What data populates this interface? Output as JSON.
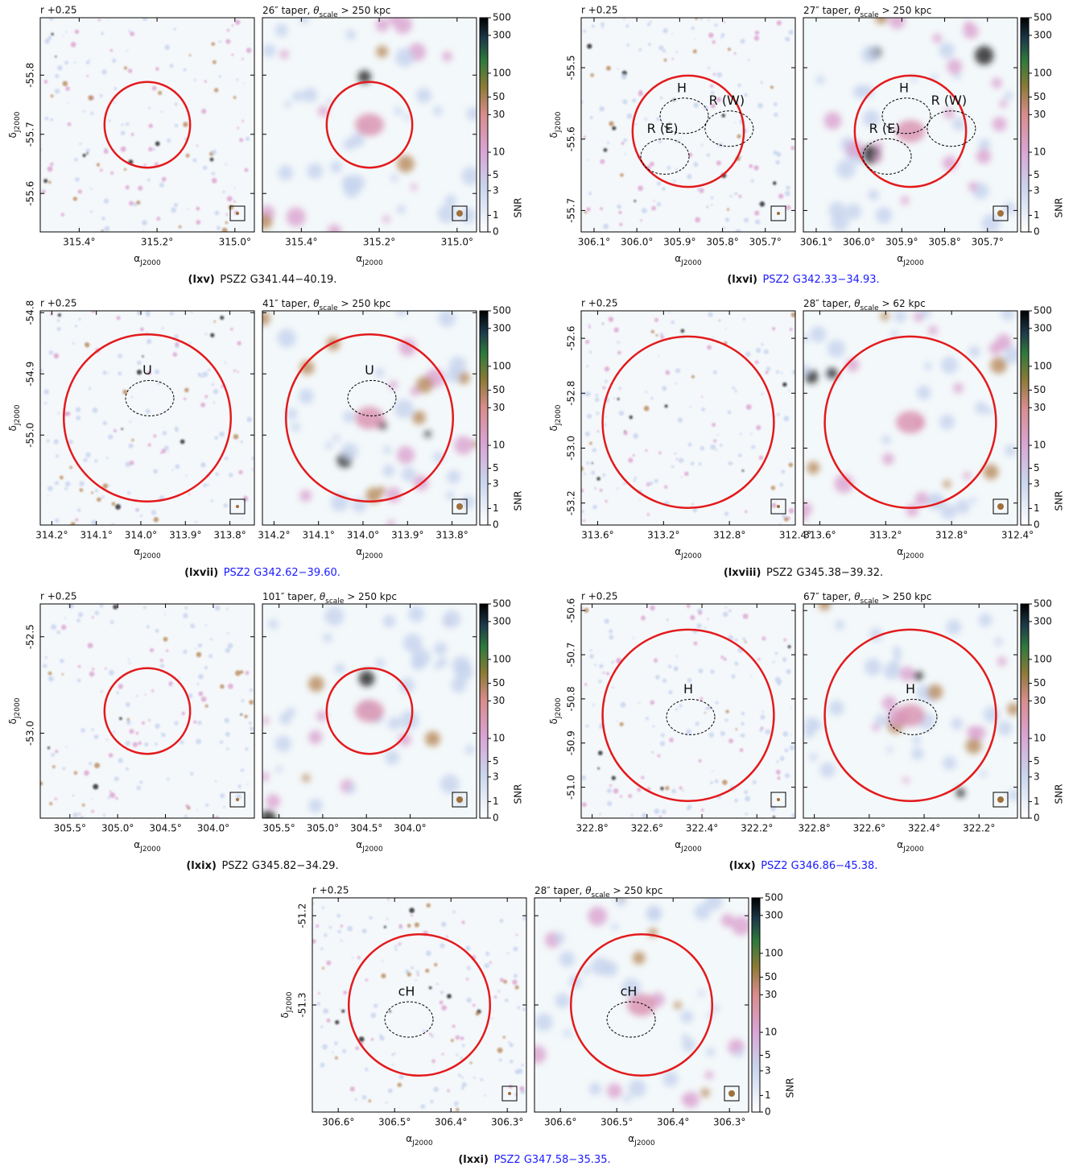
{
  "axis_labels": {
    "x": {
      "sym": "α",
      "sub": "J2000"
    },
    "y": {
      "sym": "δ",
      "sub": "J2000"
    }
  },
  "colorbar": {
    "label": "SNR",
    "lim": [
      0,
      500
    ],
    "ticks": [
      0,
      1,
      3,
      5,
      10,
      30,
      50,
      100,
      300,
      500
    ]
  },
  "panels": [
    {
      "label": "(lxv)",
      "name": "PSZ2 G341.44−40.19.",
      "link": false,
      "left_title": "r +0.25",
      "right_title": {
        "pre": "26″ taper, ",
        "theta": "θ",
        "sub": "scale",
        "post": " > 250 kpc"
      },
      "xlim": [
        315.5,
        314.95
      ],
      "xticks": [
        {
          "value": 315.4,
          "label": "315.4°"
        },
        {
          "value": 315.2,
          "label": "315.2°"
        },
        {
          "value": 315.0,
          "label": "315.0°"
        }
      ],
      "ylim": [
        -55.897,
        -55.535
      ],
      "yticks": [
        -55.6,
        -55.7,
        -55.8
      ],
      "annotations": []
    },
    {
      "label": "(lxvi)",
      "name": "PSZ2 G342.33−34.93.",
      "link": true,
      "left_title": "r +0.25",
      "right_title": {
        "pre": "27″ taper, ",
        "theta": "θ",
        "sub": "scale",
        "post": " > 250 kpc"
      },
      "xlim": [
        306.13,
        305.63
      ],
      "xticks": [
        {
          "value": 306.1,
          "label": "306.1°"
        },
        {
          "value": 306.0,
          "label": "306.0°"
        },
        {
          "value": 305.9,
          "label": "305.9°"
        },
        {
          "value": 305.8,
          "label": "305.8°"
        },
        {
          "value": 305.7,
          "label": "305.7°"
        }
      ],
      "ylim": [
        -55.43,
        -55.73
      ],
      "yticks": [
        -55.5,
        -55.6,
        -55.7
      ],
      "annotations": [
        "H",
        "R (W)",
        "R (E)"
      ]
    },
    {
      "label": "(lxvii)",
      "name": "PSZ2 G342.62−39.60.",
      "link": true,
      "left_title": "r +0.25",
      "right_title": {
        "pre": "41″ taper, ",
        "theta": "θ",
        "sub": "scale",
        "post": " > 250 kpc"
      },
      "xlim": [
        314.226,
        313.745
      ],
      "xticks": [
        {
          "value": 314.2,
          "label": "314.2°"
        },
        {
          "value": 314.1,
          "label": "314.1°"
        },
        {
          "value": 314.0,
          "label": "314.0°"
        },
        {
          "value": 313.9,
          "label": "313.9°"
        },
        {
          "value": 313.8,
          "label": "313.8°"
        }
      ],
      "ylim": [
        -54.797,
        -55.147
      ],
      "yticks": [
        -54.8,
        -54.9,
        {
          "value": -55.0,
          "label": "-55.0"
        }
      ],
      "annotations": [
        "U"
      ]
    },
    {
      "label": "(lxviii)",
      "name": "PSZ2 G345.38−39.32.",
      "link": false,
      "left_title": "r +0.25",
      "right_title": {
        "pre": "28″ taper, ",
        "theta": "θ",
        "sub": "scale",
        "post": " > 62 kpc"
      },
      "xlim": [
        313.7,
        312.4
      ],
      "xticks": [
        {
          "value": 313.6,
          "label": "313.6°"
        },
        {
          "value": 313.2,
          "label": "313.2°"
        },
        {
          "value": 312.8,
          "label": "312.8°"
        },
        {
          "value": 312.4,
          "label": "312.4°"
        }
      ],
      "ylim": [
        -52.5,
        -53.28
      ],
      "yticks": [
        -52.6,
        -52.8,
        {
          "value": -53.0,
          "label": "-53.0"
        },
        -53.2
      ],
      "annotations": []
    },
    {
      "label": "(lxix)",
      "name": "PSZ2 G345.82−34.29.",
      "link": false,
      "left_title": "r +0.25",
      "right_title": {
        "pre": "101″ taper, ",
        "theta": "θ",
        "sub": "scale",
        "post": " > 250 kpc"
      },
      "xlim": [
        305.81,
        303.57
      ],
      "right_xlim": [
        305.69,
        303.24
      ],
      "xticks": [
        {
          "value": 305.5,
          "label": "305.5°"
        },
        {
          "value": 305.0,
          "label": "305.0°"
        },
        {
          "value": 304.5,
          "label": "304.5°"
        },
        {
          "value": 304.0,
          "label": "304.0°"
        }
      ],
      "ylim": [
        -52.33,
        -53.44
      ],
      "yticks": [
        -52.5,
        {
          "value": -53.0,
          "label": "-53.0"
        }
      ],
      "annotations": []
    },
    {
      "label": "(lxx)",
      "name": "PSZ2 G346.86−45.38.",
      "link": true,
      "left_title": "r +0.25",
      "right_title": {
        "pre": "67″ taper, ",
        "theta": "θ",
        "sub": "scale",
        "post": " > 250 kpc"
      },
      "xlim": [
        322.84,
        322.06
      ],
      "xticks": [
        {
          "value": 322.8,
          "label": "322.8°"
        },
        {
          "value": 322.6,
          "label": "322.6°"
        },
        {
          "value": 322.4,
          "label": "322.4°"
        },
        {
          "value": 322.2,
          "label": "322.2°"
        }
      ],
      "ylim": [
        -50.585,
        -51.07
      ],
      "yticks": [
        -50.6,
        -50.7,
        -50.8,
        -50.9,
        {
          "value": -51.0,
          "label": "-51.0"
        }
      ],
      "annotations": [
        "H"
      ]
    },
    {
      "label": "(lxxi)",
      "name": "PSZ2 G347.58−35.35.",
      "link": true,
      "left_title": "r +0.25",
      "right_title": {
        "pre": "28″ taper, ",
        "theta": "θ",
        "sub": "scale",
        "post": " > 250 kpc"
      },
      "xlim": [
        306.646,
        306.266
      ],
      "xticks": [
        {
          "value": 306.6,
          "label": "306.6°"
        },
        {
          "value": 306.5,
          "label": "306.5°"
        },
        {
          "value": 306.4,
          "label": "306.4°"
        },
        {
          "value": 306.3,
          "label": "306.3°"
        }
      ],
      "ylim": [
        -51.18,
        -51.42
      ],
      "yticks": [
        -51.2,
        -51.3
      ],
      "annotations": [
        "cH"
      ]
    }
  ]
}
